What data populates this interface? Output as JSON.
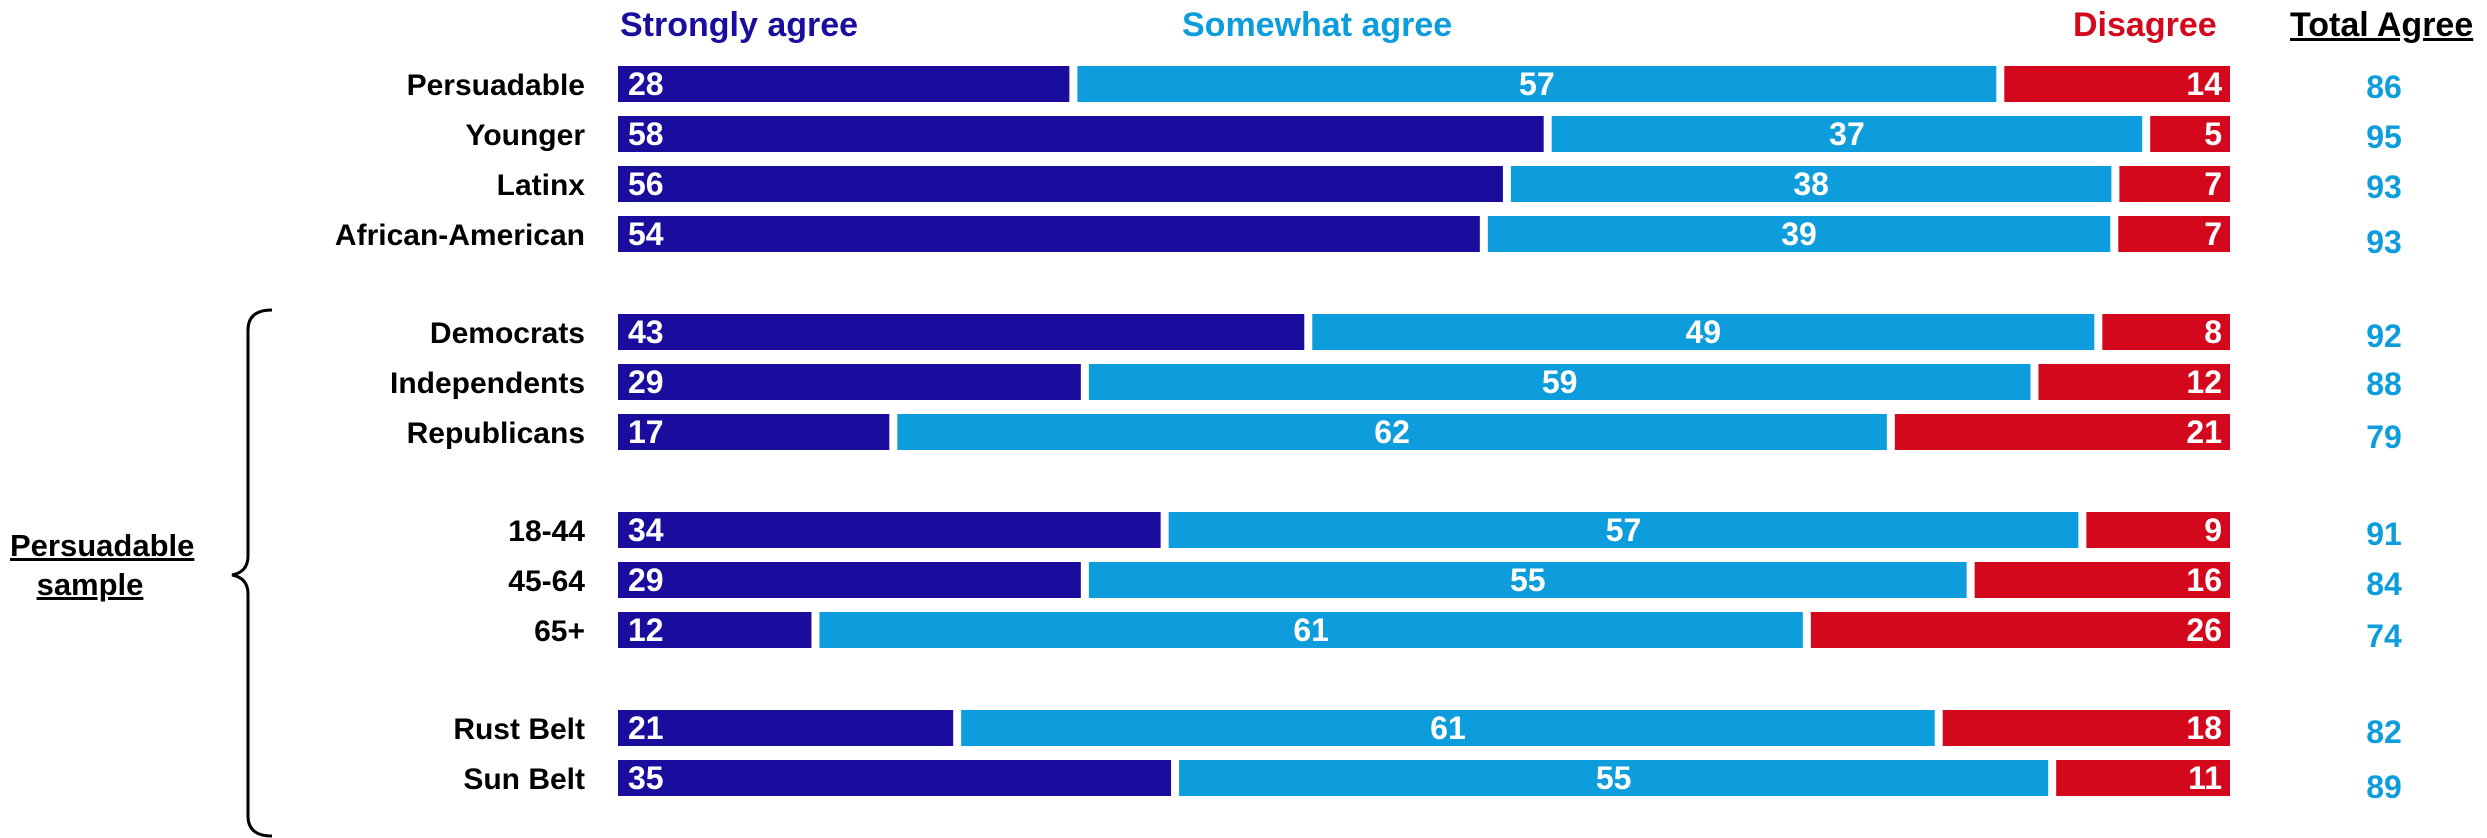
{
  "legend": {
    "strongly": "Strongly agree",
    "somewhat": "Somewhat agree",
    "disagree": "Disagree",
    "total": "Total Agree"
  },
  "side_label": {
    "line1": "Persuadable",
    "line2": "sample"
  },
  "colors": {
    "strongly": "#1a0d9e",
    "somewhat": "#0d9ddc",
    "disagree": "#d4081d",
    "total_text": "#0d9ddc"
  },
  "chart_data": {
    "type": "bar",
    "orientation": "horizontal",
    "stacked": true,
    "title": "",
    "xlabel": "",
    "ylabel": "",
    "xlim": [
      0,
      100
    ],
    "categories": [
      "Persuadable",
      "Younger",
      "Latinx",
      "African-American",
      "Democrats",
      "Independents",
      "Republicans",
      "18-44",
      "45-64",
      "65+",
      "Rust Belt",
      "Sun Belt"
    ],
    "series": [
      {
        "name": "Strongly agree",
        "values": [
          28,
          58,
          56,
          54,
          43,
          29,
          17,
          34,
          29,
          12,
          21,
          35
        ]
      },
      {
        "name": "Somewhat agree",
        "values": [
          57,
          37,
          38,
          39,
          49,
          59,
          62,
          57,
          55,
          61,
          61,
          55
        ]
      },
      {
        "name": "Disagree",
        "values": [
          14,
          5,
          7,
          7,
          8,
          12,
          21,
          9,
          16,
          26,
          18,
          11
        ]
      }
    ],
    "total_agree": [
      86,
      95,
      93,
      93,
      92,
      88,
      79,
      91,
      84,
      74,
      82,
      89
    ],
    "grid": false,
    "legend_position": "top"
  }
}
